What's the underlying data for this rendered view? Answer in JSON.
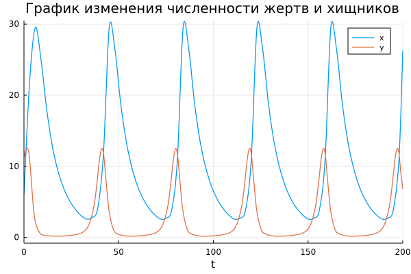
{
  "chart_data": {
    "type": "line",
    "title": "График изменения численности жертв и хищников",
    "xlabel": "t",
    "ylabel": "",
    "xlim": [
      0,
      200
    ],
    "ylim": [
      -0.8,
      30.5
    ],
    "xticks": [
      0,
      50,
      100,
      150,
      200
    ],
    "yticks": [
      0,
      10,
      20,
      30
    ],
    "grid": true,
    "legend_position": "top-right",
    "series": [
      {
        "name": "x",
        "color": "#009af9",
        "x": [
          0,
          3,
          6,
          9,
          12,
          15,
          18,
          21,
          24,
          27,
          30,
          33,
          36,
          39,
          42,
          45,
          48,
          51,
          54,
          57,
          60,
          63,
          66,
          69,
          72,
          75,
          78,
          81,
          84,
          87,
          90,
          93,
          96,
          99,
          102,
          105,
          108,
          111,
          114,
          117,
          120,
          123,
          126,
          129,
          132,
          135,
          138,
          141,
          144,
          147,
          150,
          153,
          156,
          159,
          162,
          165,
          168,
          171,
          174,
          177,
          180,
          183,
          186,
          189,
          192,
          195,
          198,
          200
        ],
        "values": [
          6.0,
          22.0,
          29.5,
          25.0,
          18.0,
          12.8,
          9.3,
          6.9,
          5.2,
          4.0,
          3.1,
          2.6,
          2.8,
          4.2,
          12.0,
          29.5,
          26.5,
          19.0,
          13.5,
          9.8,
          7.2,
          5.4,
          4.1,
          3.2,
          2.6,
          2.7,
          3.9,
          11.0,
          29.5,
          26.5,
          19.0,
          13.5,
          9.8,
          7.2,
          5.4,
          4.1,
          3.2,
          2.6,
          2.7,
          3.9,
          11.0,
          29.5,
          26.5,
          19.0,
          13.5,
          9.8,
          7.2,
          5.4,
          4.1,
          3.2,
          2.6,
          2.7,
          3.9,
          11.0,
          29.5,
          26.5,
          19.0,
          13.5,
          9.8,
          7.2,
          5.4,
          4.1,
          3.2,
          2.6,
          2.7,
          3.9,
          11.0,
          26.3
        ]
      },
      {
        "name": "y",
        "color": "#e26f46",
        "x": [
          0,
          1,
          2,
          3,
          4,
          5,
          6,
          8,
          10,
          15,
          20,
          25,
          30,
          33,
          35,
          37,
          38,
          39,
          40,
          41,
          42,
          43,
          44,
          45,
          47,
          49,
          54,
          59,
          64,
          69,
          72,
          74,
          76,
          77,
          78,
          79,
          80,
          81,
          82,
          83,
          84,
          86,
          88,
          93,
          98,
          103,
          108,
          111,
          113,
          115,
          116,
          117,
          118,
          119,
          120,
          121,
          122,
          123,
          125,
          127,
          132,
          137,
          142,
          147,
          150,
          152,
          154,
          155,
          156,
          157,
          158,
          159,
          160,
          161,
          162,
          164,
          166,
          171,
          176,
          181,
          186,
          189,
          191,
          193,
          194,
          195,
          196,
          197,
          198,
          199,
          200
        ],
        "values": [
          11.2,
          12.3,
          12.5,
          11.0,
          7.5,
          4.2,
          2.2,
          0.8,
          0.35,
          0.2,
          0.2,
          0.3,
          0.6,
          1.2,
          2.3,
          4.5,
          6.4,
          8.8,
          11.2,
          12.5,
          11.8,
          9.0,
          6.0,
          3.6,
          1.3,
          0.55,
          0.2,
          0.2,
          0.3,
          0.6,
          1.2,
          2.3,
          4.5,
          6.4,
          8.8,
          11.2,
          12.5,
          11.8,
          9.0,
          6.0,
          3.6,
          1.3,
          0.55,
          0.2,
          0.2,
          0.3,
          0.6,
          1.2,
          2.3,
          4.5,
          6.4,
          8.8,
          11.2,
          12.5,
          11.8,
          9.0,
          6.0,
          3.6,
          1.3,
          0.55,
          0.2,
          0.2,
          0.3,
          0.6,
          1.2,
          2.3,
          4.5,
          6.4,
          8.8,
          11.2,
          12.5,
          11.8,
          9.0,
          6.0,
          3.6,
          1.3,
          0.55,
          0.2,
          0.2,
          0.3,
          0.6,
          1.2,
          2.3,
          4.5,
          6.4,
          8.8,
          11.2,
          12.5,
          11.8,
          9.0,
          6.8
        ]
      }
    ]
  }
}
